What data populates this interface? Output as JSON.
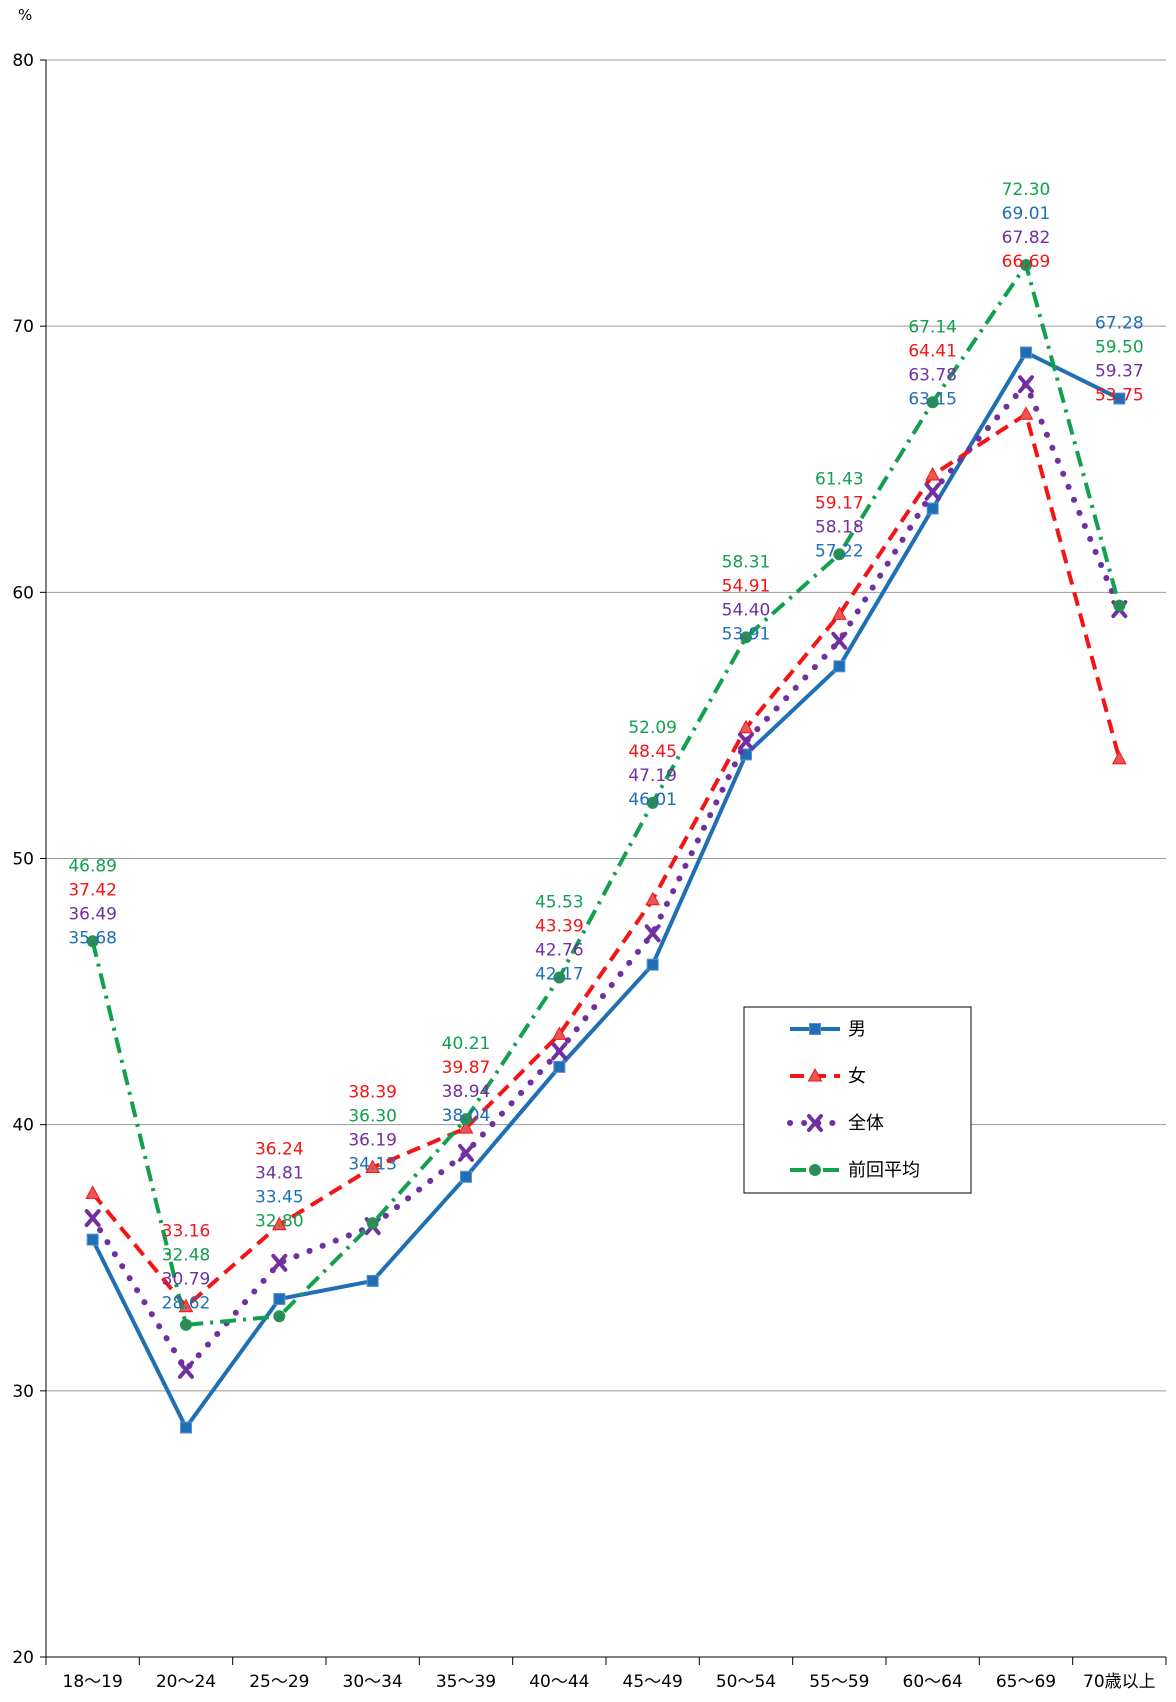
{
  "chart_data": {
    "type": "line",
    "title": "",
    "xlabel": "",
    "ylabel": "",
    "y_unit": "%",
    "ylim": [
      20,
      80
    ],
    "yticks": [
      20,
      30,
      40,
      50,
      60,
      70,
      80
    ],
    "grid": "horizontal",
    "legend_position": "right",
    "categories": [
      "18～19",
      "20～24",
      "25～29",
      "30～34",
      "35～39",
      "40～44",
      "45～49",
      "50～54",
      "55～59",
      "60～64",
      "65～69",
      "70歳以上"
    ],
    "series": [
      {
        "name": "男",
        "color": "#1F6FB5",
        "line_style": "solid",
        "marker": "square",
        "values": [
          35.68,
          28.62,
          33.45,
          34.13,
          38.04,
          42.17,
          46.01,
          53.91,
          57.22,
          63.15,
          69.01,
          67.28
        ]
      },
      {
        "name": "女",
        "color": "#F41414",
        "line_style": "dashed",
        "marker": "triangle",
        "values": [
          37.42,
          33.16,
          36.24,
          38.39,
          39.87,
          43.39,
          48.45,
          54.91,
          59.17,
          64.41,
          66.69,
          53.75
        ]
      },
      {
        "name": "全体",
        "color": "#7030A0",
        "line_style": "dotted",
        "marker": "x",
        "values": [
          36.49,
          30.79,
          34.81,
          36.19,
          38.94,
          42.76,
          47.19,
          54.4,
          58.18,
          63.78,
          67.82,
          59.37
        ]
      },
      {
        "name": "前回平均",
        "color": "#12A04E",
        "line_style": "dash-dot",
        "marker": "circle",
        "values": [
          46.89,
          32.48,
          32.8,
          36.3,
          40.21,
          45.53,
          52.09,
          58.31,
          61.43,
          67.14,
          72.3,
          59.5
        ]
      }
    ]
  }
}
